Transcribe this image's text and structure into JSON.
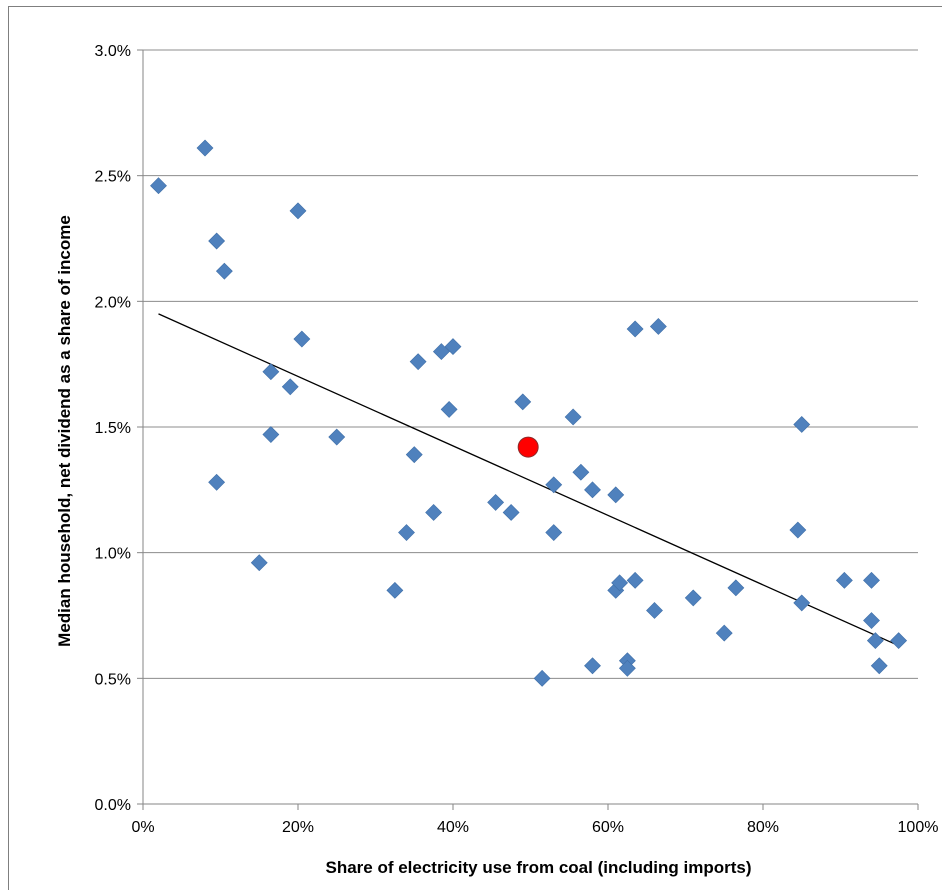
{
  "chart_data": {
    "type": "scatter",
    "title": "",
    "xlabel": "Share of electricity  use from coal (including imports)",
    "ylabel": "Median household, net dividend as a share of income",
    "xlim": [
      0,
      1
    ],
    "ylim": [
      0,
      0.03
    ],
    "x_ticks": [
      "0%",
      "20%",
      "40%",
      "60%",
      "80%",
      "100%"
    ],
    "y_ticks": [
      "0.0%",
      "0.5%",
      "1.0%",
      "1.5%",
      "2.0%",
      "2.5%",
      "3.0%"
    ],
    "grid": "horizontal",
    "legend": "none",
    "colors": {
      "points": "#4f81bd",
      "highlight": "#ff0000",
      "trendline": "#000000",
      "grid": "#8c8c8c"
    },
    "series": [
      {
        "marker": "diamond",
        "points": [
          [
            0.02,
            0.0246
          ],
          [
            0.08,
            0.0261
          ],
          [
            0.095,
            0.0224
          ],
          [
            0.105,
            0.0212
          ],
          [
            0.2,
            0.0236
          ],
          [
            0.205,
            0.0185
          ],
          [
            0.165,
            0.0172
          ],
          [
            0.19,
            0.0166
          ],
          [
            0.165,
            0.0147
          ],
          [
            0.25,
            0.0146
          ],
          [
            0.095,
            0.0128
          ],
          [
            0.15,
            0.0096
          ],
          [
            0.325,
            0.0085
          ],
          [
            0.34,
            0.0108
          ],
          [
            0.35,
            0.0139
          ],
          [
            0.355,
            0.0176
          ],
          [
            0.385,
            0.018
          ],
          [
            0.4,
            0.0182
          ],
          [
            0.395,
            0.0157
          ],
          [
            0.375,
            0.0116
          ],
          [
            0.455,
            0.012
          ],
          [
            0.475,
            0.0116
          ],
          [
            0.49,
            0.016
          ],
          [
            0.53,
            0.0127
          ],
          [
            0.53,
            0.0108
          ],
          [
            0.515,
            0.005
          ],
          [
            0.555,
            0.0154
          ],
          [
            0.565,
            0.0132
          ],
          [
            0.58,
            0.0125
          ],
          [
            0.58,
            0.0055
          ],
          [
            0.61,
            0.0123
          ],
          [
            0.61,
            0.0085
          ],
          [
            0.615,
            0.0088
          ],
          [
            0.625,
            0.0057
          ],
          [
            0.625,
            0.0054
          ],
          [
            0.635,
            0.0089
          ],
          [
            0.635,
            0.0189
          ],
          [
            0.665,
            0.019
          ],
          [
            0.66,
            0.0077
          ],
          [
            0.71,
            0.0082
          ],
          [
            0.75,
            0.0068
          ],
          [
            0.765,
            0.0086
          ],
          [
            0.845,
            0.0109
          ],
          [
            0.85,
            0.0151
          ],
          [
            0.85,
            0.008
          ],
          [
            0.905,
            0.0089
          ],
          [
            0.94,
            0.0089
          ],
          [
            0.94,
            0.0073
          ],
          [
            0.945,
            0.0065
          ],
          [
            0.95,
            0.0055
          ],
          [
            0.975,
            0.0065
          ]
        ]
      },
      {
        "marker": "circle",
        "points": [
          [
            0.497,
            0.0142
          ]
        ]
      }
    ],
    "trendline": {
      "x": [
        0.02,
        0.975
      ],
      "y": [
        0.0195,
        0.0063
      ]
    }
  }
}
